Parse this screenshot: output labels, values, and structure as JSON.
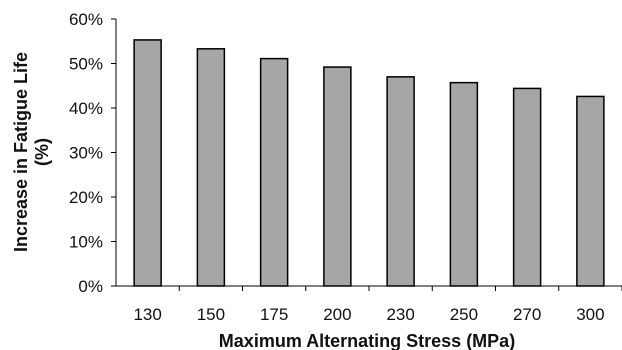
{
  "chart_data": {
    "type": "bar",
    "categories": [
      "130",
      "150",
      "175",
      "200",
      "230",
      "250",
      "270",
      "300"
    ],
    "values": [
      55.3,
      53.3,
      51.1,
      49.2,
      47.0,
      45.7,
      44.4,
      42.6
    ],
    "value_format": "percent",
    "ylim": [
      0,
      60
    ],
    "yticks": [
      "0%",
      "10%",
      "20%",
      "30%",
      "40%",
      "50%",
      "60%"
    ],
    "xlabel": "Maximum Alternating Stress (MPa)",
    "ylabel_line1": "Increase in Fatigue Life",
    "ylabel_line2": "(%)",
    "grid": false,
    "legend": "none",
    "bar_color": "#a6a6a6",
    "bar_stroke": "#000000"
  }
}
